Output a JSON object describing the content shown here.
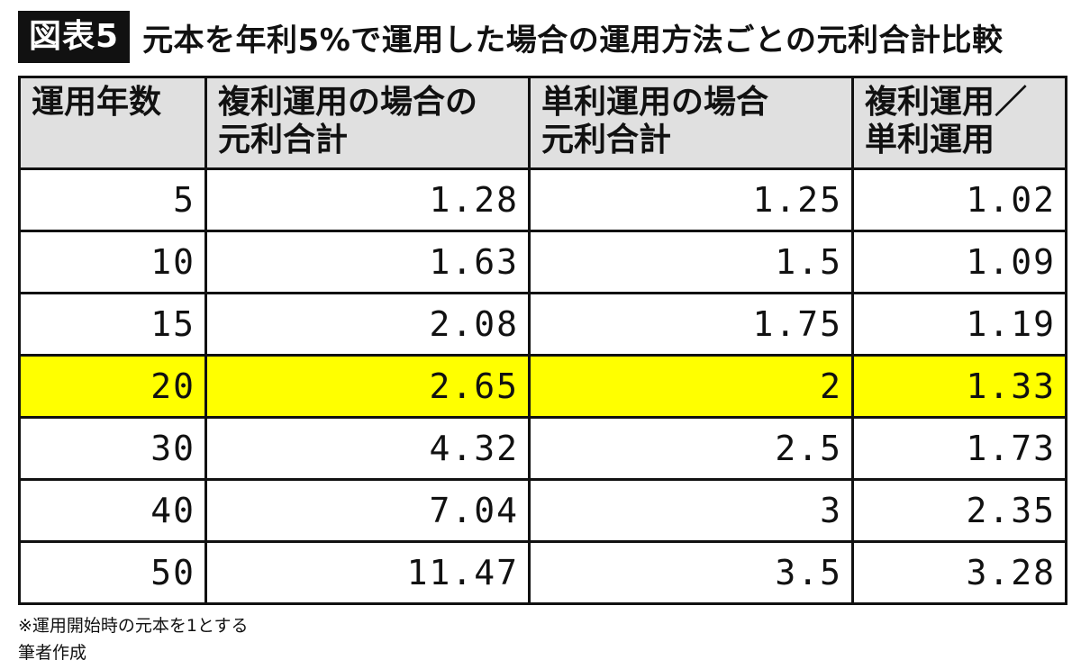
{
  "title": {
    "badge": "図表5",
    "text": "元本を年利5%で運用した場合の運用方法ごとの元利合計比較"
  },
  "table": {
    "headers": [
      [
        "運用年数"
      ],
      [
        "複利運用の場合の",
        "元利合計"
      ],
      [
        "単利運用の場合",
        "元利合計"
      ],
      [
        "複利運用／",
        "単利運用"
      ]
    ],
    "rows": [
      {
        "cells": [
          "5",
          "1.28",
          "1.25",
          "1.02"
        ],
        "highlight": false
      },
      {
        "cells": [
          "10",
          "1.63",
          "1.5",
          "1.09"
        ],
        "highlight": false
      },
      {
        "cells": [
          "15",
          "2.08",
          "1.75",
          "1.19"
        ],
        "highlight": false
      },
      {
        "cells": [
          "20",
          "2.65",
          "2",
          "1.33"
        ],
        "highlight": true
      },
      {
        "cells": [
          "30",
          "4.32",
          "2.5",
          "1.73"
        ],
        "highlight": false
      },
      {
        "cells": [
          "40",
          "7.04",
          "3",
          "2.35"
        ],
        "highlight": false
      },
      {
        "cells": [
          "50",
          "11.47",
          "3.5",
          "3.28"
        ],
        "highlight": false
      }
    ]
  },
  "footnotes": {
    "note": "※運用開始時の元本を1とする",
    "source": "筆者作成"
  },
  "colors": {
    "highlight": "#ffff00",
    "header_bg": "#e0e0e0",
    "badge_bg": "#111111"
  }
}
